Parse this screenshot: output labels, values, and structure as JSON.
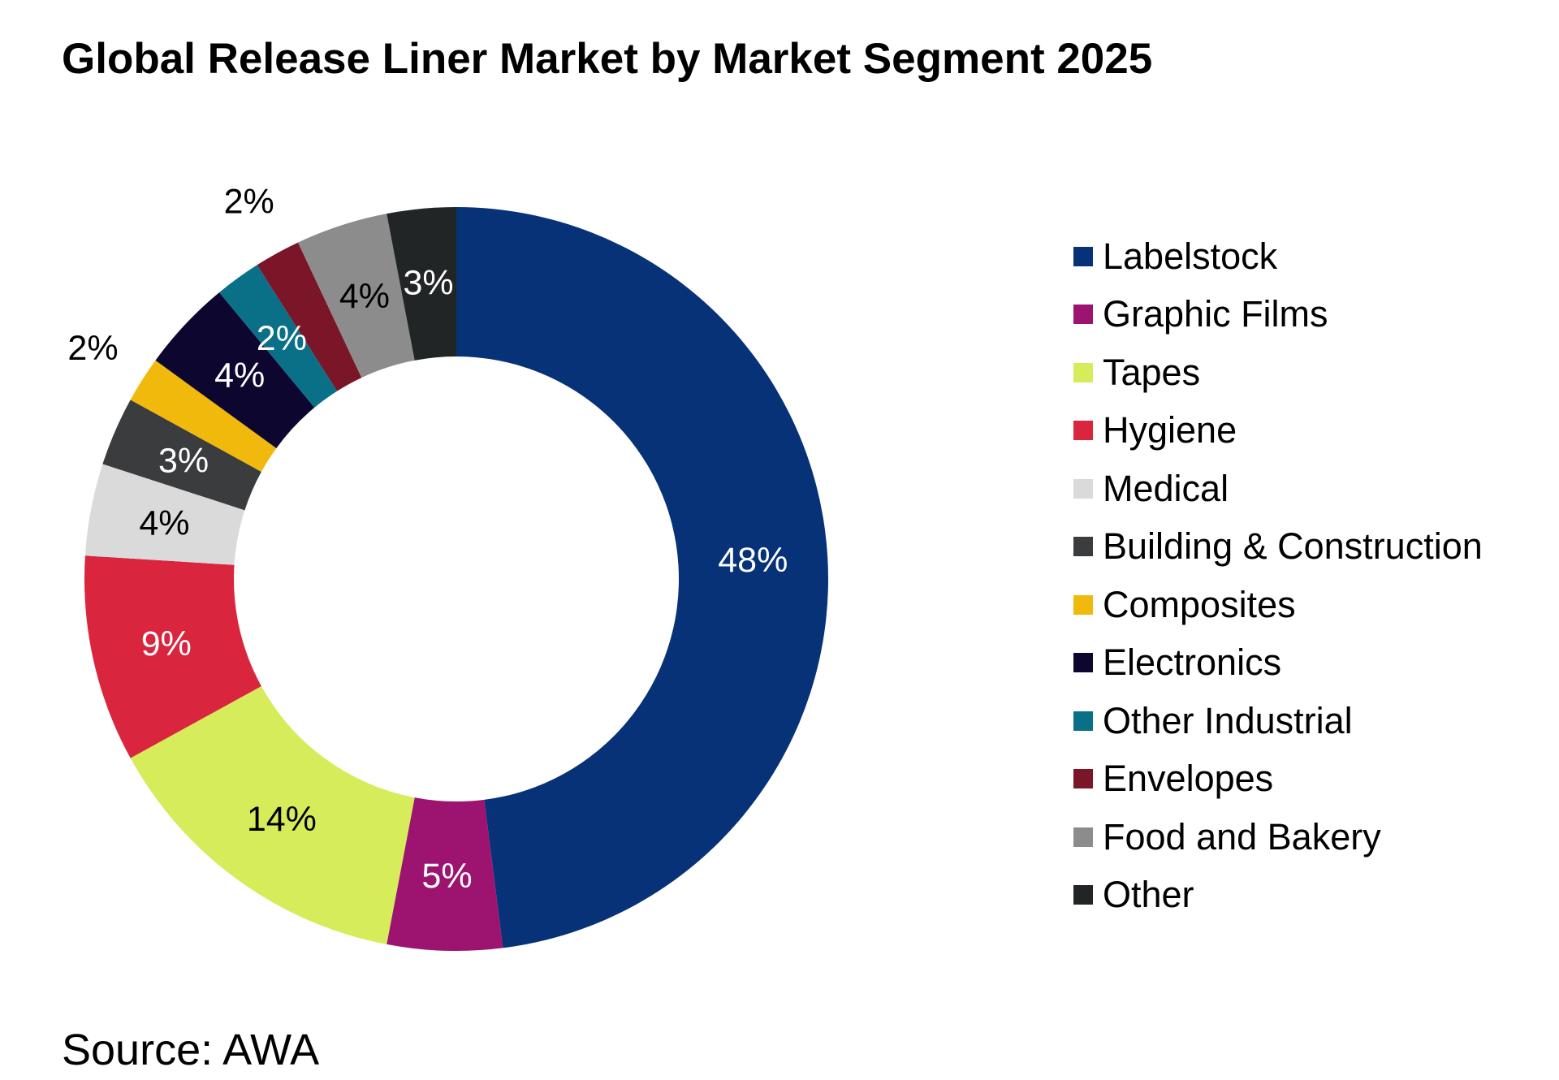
{
  "chart_data": {
    "type": "pie",
    "title": "Global Release Liner Market by Market Segment 2025",
    "source": "Source: AWA",
    "legend_position": "right",
    "donut": true,
    "categories": [
      "Labelstock",
      "Graphic Films",
      "Tapes",
      "Hygiene",
      "Medical",
      "Building & Construction",
      "Composites",
      "Electronics",
      "Other Industrial",
      "Envelopes",
      "Food and Bakery",
      "Other"
    ],
    "values": [
      48,
      5,
      14,
      9,
      4,
      3,
      2,
      4,
      2,
      2,
      4,
      3
    ],
    "data_labels": [
      "48%",
      "5%",
      "14%",
      "9%",
      "4%",
      "3%",
      "2%",
      "4%",
      "2%",
      "2%",
      "4%",
      "3%"
    ],
    "colors": [
      "#073278",
      "#9c1470",
      "#d6ec5a",
      "#d9253e",
      "#dadada",
      "#3a3c3d",
      "#f2b90d",
      "#0d0730",
      "#0a7088",
      "#7b1628",
      "#8c8c8c",
      "#222526"
    ],
    "label_colors": [
      "#ffffff",
      "#ffffff",
      "#000000",
      "#ffffff",
      "#000000",
      "#ffffff",
      "#000000",
      "#ffffff",
      "#ffffff",
      "#000000",
      "#000000",
      "#ffffff"
    ]
  }
}
